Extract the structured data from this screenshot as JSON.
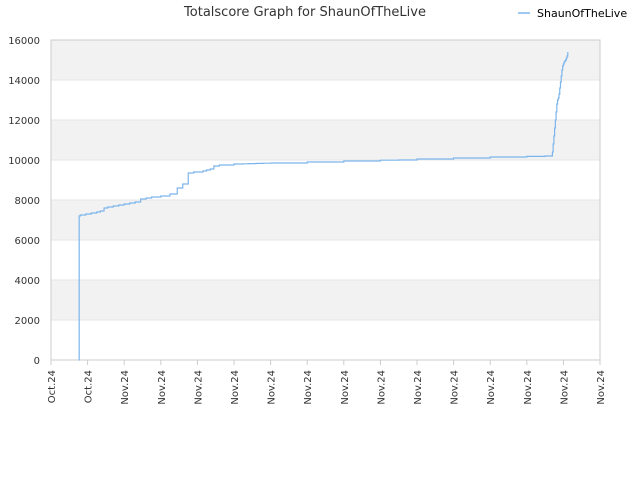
{
  "chart_data": {
    "type": "line",
    "title": "Totalscore Graph for ShaunOfTheLive",
    "xlabel": "",
    "ylabel": "",
    "ylim": [
      0,
      16000
    ],
    "y_ticks": [
      0,
      2000,
      4000,
      6000,
      8000,
      10000,
      12000,
      14000,
      16000
    ],
    "x_tick_labels": [
      "Oct.24",
      "Oct.24",
      "Nov.24",
      "Nov.24",
      "Nov.24",
      "Nov.24",
      "Nov.24",
      "Nov.24",
      "Nov.24",
      "Nov.24",
      "Nov.24",
      "Nov.24",
      "Nov.24",
      "Nov.24",
      "Nov.24",
      "Nov.24"
    ],
    "x_range": [
      0,
      15
    ],
    "grid": "horizontal alternating bands",
    "legend_position": "top-right",
    "colors": {
      "series": "#7cb5ec",
      "band": "#f2f2f2",
      "grid": "#e6e6e6",
      "axis": "#cccccc"
    },
    "series": [
      {
        "name": "ShaunOfTheLive",
        "x": [
          0.76,
          0.77,
          0.8,
          0.95,
          1.1,
          1.25,
          1.35,
          1.45,
          1.55,
          1.7,
          1.85,
          2.0,
          2.15,
          2.3,
          2.45,
          2.6,
          2.75,
          2.9,
          3.0,
          3.1,
          3.25,
          3.45,
          3.6,
          3.75,
          3.9,
          4.05,
          4.15,
          4.2,
          4.25,
          4.3,
          4.35,
          4.4,
          4.45,
          4.6,
          4.8,
          5.0,
          5.2,
          5.25,
          5.4,
          5.6,
          5.8,
          6.0,
          6.5,
          7.0,
          7.5,
          8.0,
          8.5,
          9.0,
          9.5,
          10.0,
          10.5,
          11.0,
          11.5,
          12.0,
          12.5,
          13.0,
          13.5,
          13.7,
          13.72,
          13.74,
          13.76,
          13.78,
          13.8,
          13.82,
          13.84,
          13.86,
          13.88,
          13.9,
          13.92,
          13.94,
          13.96,
          13.98,
          14.0,
          14.02,
          14.04,
          14.06,
          14.08,
          14.1,
          14.12
        ],
        "y": [
          0,
          7200,
          7250,
          7300,
          7350,
          7400,
          7450,
          7600,
          7650,
          7700,
          7750,
          7800,
          7850,
          7900,
          8050,
          8100,
          8150,
          8150,
          8200,
          8200,
          8300,
          8600,
          8800,
          9350,
          9400,
          9400,
          9450,
          9450,
          9500,
          9500,
          9550,
          9550,
          9700,
          9750,
          9750,
          9800,
          9800,
          9810,
          9820,
          9830,
          9840,
          9850,
          9850,
          9900,
          9900,
          9950,
          9950,
          9990,
          10000,
          10050,
          10050,
          10100,
          10100,
          10150,
          10150,
          10180,
          10200,
          10400,
          10800,
          11200,
          11600,
          12000,
          12400,
          12800,
          13000,
          13100,
          13300,
          13600,
          13900,
          14200,
          14500,
          14700,
          14800,
          14900,
          14950,
          15000,
          15100,
          15200,
          15400
        ]
      }
    ]
  }
}
